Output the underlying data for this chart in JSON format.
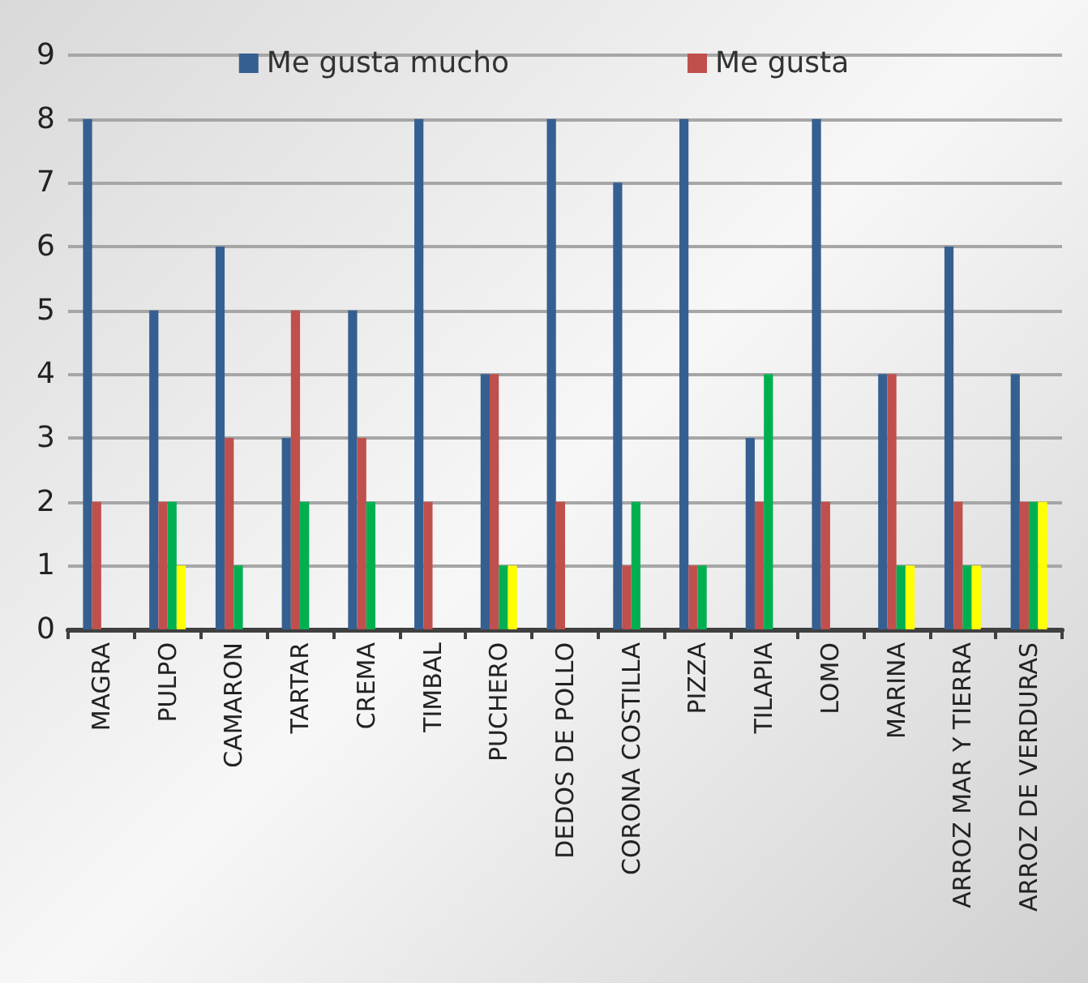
{
  "chart_data": {
    "type": "bar",
    "categories": [
      "MAGRA",
      "PULPO",
      "CAMARON",
      "TARTAR",
      "CREMA",
      "TIMBAL",
      "PUCHERO",
      "DEDOS DE POLLO",
      "CORONA COSTILLA",
      "PIZZA",
      "TILAPIA",
      "LOMO",
      "MARINA",
      "ARROZ MAR Y TIERRA",
      "ARROZ DE VERDURAS"
    ],
    "series": [
      {
        "name": "Me gusta mucho",
        "color": "#365f91",
        "values": [
          8,
          5,
          6,
          3,
          5,
          8,
          4,
          8,
          7,
          8,
          3,
          8,
          4,
          6,
          4
        ]
      },
      {
        "name": "Me gusta",
        "color": "#c0504d",
        "values": [
          2,
          2,
          3,
          5,
          3,
          2,
          4,
          2,
          1,
          1,
          2,
          2,
          4,
          2,
          2
        ]
      },
      {
        "color": "#00b050",
        "values": [
          0,
          2,
          1,
          2,
          2,
          0,
          1,
          0,
          2,
          1,
          4,
          0,
          1,
          1,
          2
        ]
      },
      {
        "color": "#ffff00",
        "values": [
          0,
          1,
          0,
          0,
          0,
          0,
          1,
          0,
          0,
          0,
          0,
          0,
          1,
          1,
          2
        ]
      }
    ],
    "ylim": [
      0,
      9
    ],
    "yticks": [
      0,
      1,
      2,
      3,
      4,
      5,
      6,
      7,
      8,
      9
    ],
    "grid": "y",
    "legend": "top"
  }
}
